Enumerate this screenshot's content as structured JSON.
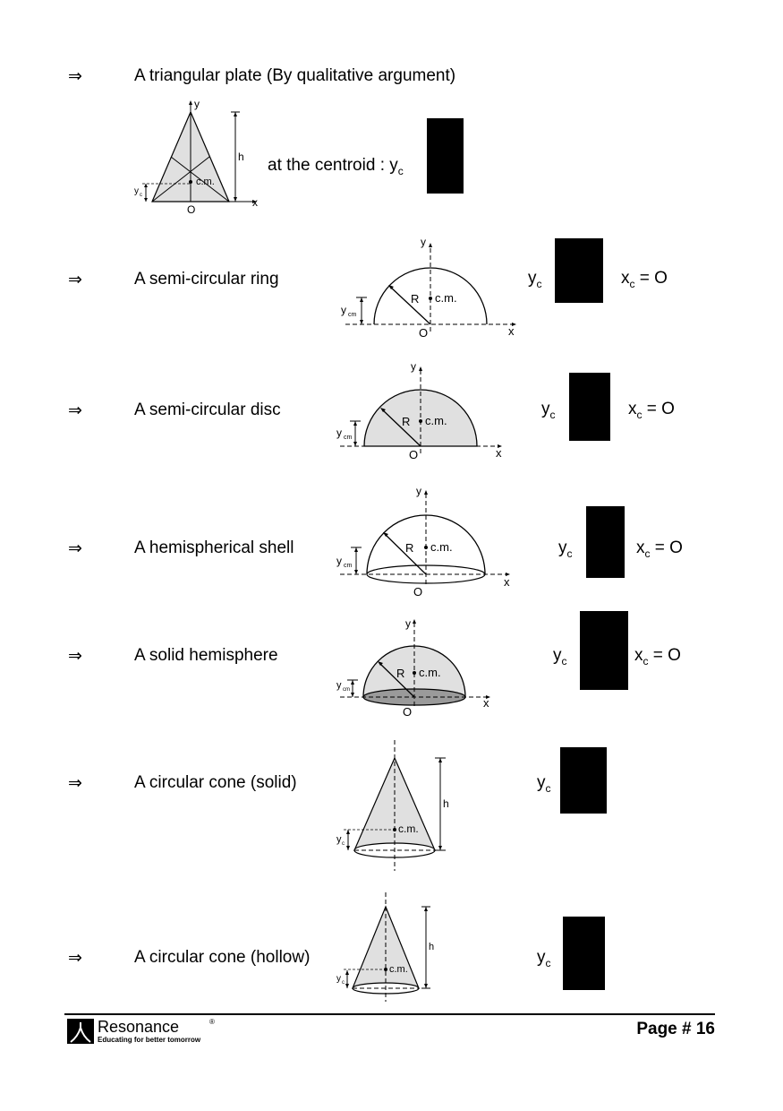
{
  "items": [
    {
      "arrow": "⇒",
      "label": "A triangular plate (By qualitative argument)",
      "formula_prefix": "at the centroid : y",
      "formula_sub": "c",
      "formula_suffix": "",
      "xc_text": "",
      "xc_sub": "",
      "xc_rest": ""
    },
    {
      "arrow": "⇒",
      "label": "A semi-circular ring",
      "formula_prefix": "y",
      "formula_sub": "c",
      "xc_text": "x",
      "xc_sub": "c",
      "xc_rest": " = O"
    },
    {
      "arrow": "⇒",
      "label": "A semi-circular disc",
      "formula_prefix": "y",
      "formula_sub": "c",
      "xc_text": "x",
      "xc_sub": "c",
      "xc_rest": " = O"
    },
    {
      "arrow": "⇒",
      "label": "A hemispherical shell",
      "formula_prefix": "y",
      "formula_sub": "c",
      "xc_text": "x",
      "xc_sub": "c",
      "xc_rest": " = O"
    },
    {
      "arrow": "⇒",
      "label": "A solid hemisphere",
      "formula_prefix": "y",
      "formula_sub": "c",
      "xc_text": "x",
      "xc_sub": "c",
      "xc_rest": " = O"
    },
    {
      "arrow": "⇒",
      "label": "A circular cone (solid)",
      "formula_prefix": "y",
      "formula_sub": "c"
    },
    {
      "arrow": "⇒",
      "label": "A circular cone (hollow)",
      "formula_prefix": "y",
      "formula_sub": "c"
    }
  ],
  "figure_labels": {
    "y": "y",
    "x": "x",
    "h": "h",
    "O": "O",
    "cm": "c.m.",
    "R": "R",
    "yc": "y",
    "yc_sub": "c",
    "ycm": "y",
    "ycm_sub": "cm"
  },
  "footer": {
    "brand": "Resonance",
    "registered": "®",
    "tagline": "Educating for better tomorrow",
    "page": "Page # 16"
  }
}
